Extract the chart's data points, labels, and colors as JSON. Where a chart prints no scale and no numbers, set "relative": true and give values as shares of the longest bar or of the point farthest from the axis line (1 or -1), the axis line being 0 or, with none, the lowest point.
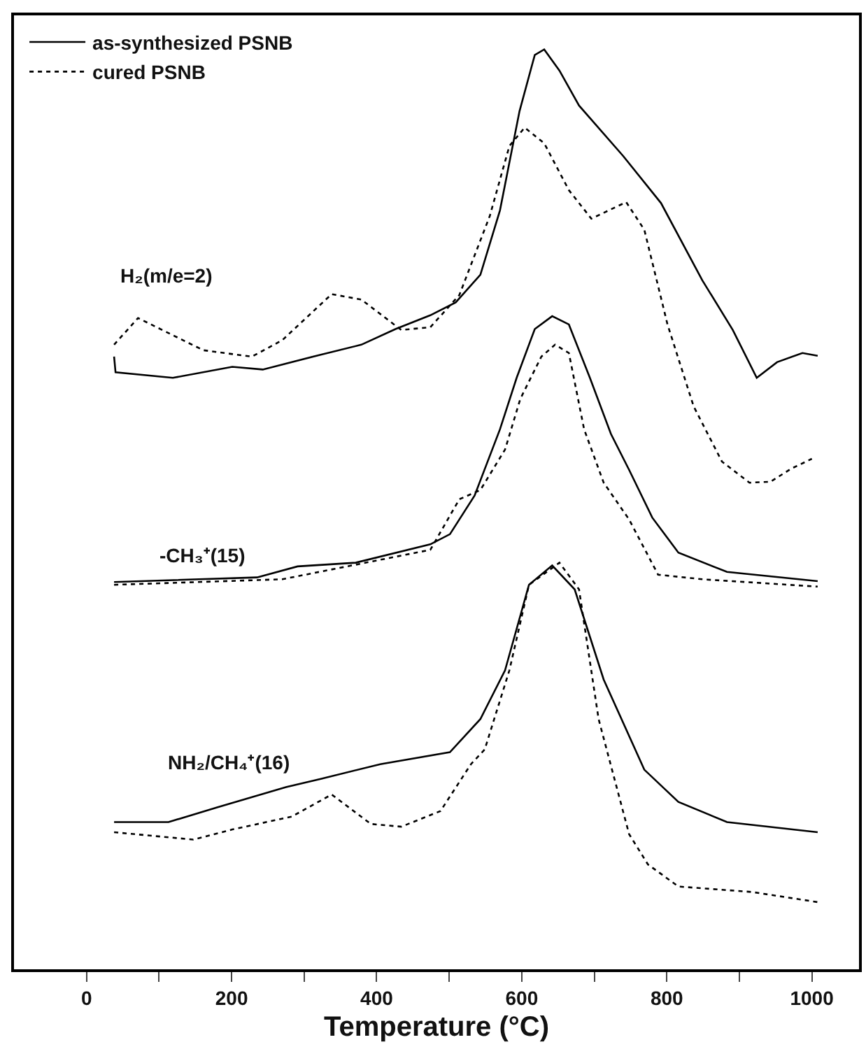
{
  "chart_data": {
    "type": "line",
    "xlabel": "Temperature (°C)",
    "relative": true,
    "legend": "top left",
    "marker": "none",
    "xlim": [
      -100,
      1065
    ],
    "xticks": [
      0,
      {
        "value": 100,
        "label": null
      },
      200,
      {
        "value": 300,
        "label": null
      },
      400,
      {
        "value": 500,
        "label": null
      },
      600,
      {
        "value": 700,
        "label": null
      },
      800,
      {
        "value": 900,
        "label": null
      },
      1000
    ],
    "annotations": [
      "H₂(m/e=2)",
      "-CH₃⁺(15)",
      "NH₂/CH₄⁺(16)"
    ],
    "series": [
      {
        "name": "as-synthesized PSNB",
        "color": "#000000",
        "line_style": "solid",
        "x": [
          38,
          40,
          119,
          201,
          243,
          317,
          379,
          426,
          474,
          509,
          543,
          570,
          597,
          618,
          631,
          652,
          679,
          740,
          792,
          849,
          891,
          924,
          952,
          987,
          1008
        ],
        "values": [
          0.666,
          0.649,
          0.643,
          0.655,
          0.652,
          0.667,
          0.679,
          0.696,
          0.711,
          0.725,
          0.755,
          0.825,
          0.933,
          0.994,
          1.0,
          0.977,
          0.939,
          0.884,
          0.833,
          0.749,
          0.695,
          0.643,
          0.66,
          0.67,
          0.667
        ]
      },
      {
        "name": "cured PSNB",
        "color": "#000000",
        "line_style": "dotted",
        "x": [
          38,
          71,
          161,
          228,
          270,
          338,
          379,
          434,
          474,
          514,
          556,
          583,
          604,
          631,
          665,
          696,
          744,
          769,
          801,
          837,
          876,
          914,
          943,
          971,
          1000
        ],
        "values": [
          0.679,
          0.708,
          0.673,
          0.666,
          0.684,
          0.734,
          0.728,
          0.695,
          0.698,
          0.733,
          0.819,
          0.895,
          0.915,
          0.898,
          0.847,
          0.816,
          0.834,
          0.804,
          0.701,
          0.612,
          0.552,
          0.529,
          0.53,
          0.544,
          0.555
        ]
      },
      {
        "color": "#000000",
        "line_style": "solid",
        "x": [
          38,
          235,
          291,
          371,
          474,
          501,
          535,
          570,
          593,
          618,
          642,
          665,
          694,
          723,
          748,
          780,
          816,
          883,
          1008
        ],
        "values": [
          0.421,
          0.426,
          0.438,
          0.442,
          0.462,
          0.473,
          0.515,
          0.587,
          0.643,
          0.696,
          0.71,
          0.701,
          0.643,
          0.582,
          0.543,
          0.491,
          0.453,
          0.432,
          0.422
        ]
      },
      {
        "color": "#000000",
        "line_style": "dotted",
        "x": [
          38,
          270,
          474,
          514,
          543,
          577,
          598,
          627,
          646,
          665,
          686,
          713,
          748,
          788,
          849,
          1008
        ],
        "values": [
          0.418,
          0.424,
          0.456,
          0.511,
          0.521,
          0.565,
          0.62,
          0.666,
          0.679,
          0.67,
          0.587,
          0.529,
          0.489,
          0.429,
          0.424,
          0.416
        ]
      },
      {
        "color": "#000000",
        "line_style": "solid",
        "x": [
          38,
          113,
          180,
          275,
          323,
          405,
          501,
          543,
          577,
          610,
          642,
          673,
          713,
          769,
          816,
          883,
          1008
        ],
        "values": [
          0.16,
          0.16,
          0.176,
          0.198,
          0.207,
          0.223,
          0.236,
          0.272,
          0.325,
          0.418,
          0.439,
          0.413,
          0.315,
          0.217,
          0.182,
          0.16,
          0.149
        ]
      },
      {
        "color": "#000000",
        "line_style": "dotted",
        "x": [
          38,
          147,
          201,
          283,
          338,
          392,
          434,
          488,
          530,
          549,
          583,
          610,
          652,
          679,
          706,
          748,
          774,
          816,
          918,
          1008
        ],
        "values": [
          0.149,
          0.141,
          0.152,
          0.166,
          0.19,
          0.158,
          0.155,
          0.172,
          0.223,
          0.239,
          0.325,
          0.418,
          0.442,
          0.413,
          0.272,
          0.147,
          0.114,
          0.09,
          0.084,
          0.073
        ]
      }
    ]
  }
}
